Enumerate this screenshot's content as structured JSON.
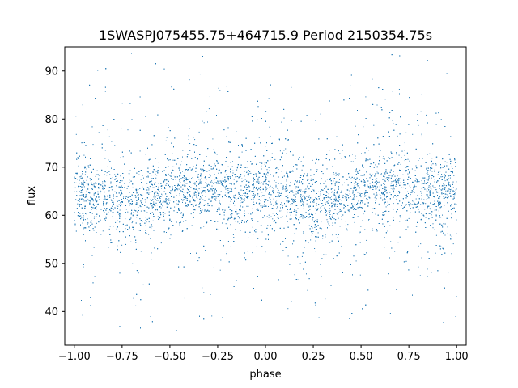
{
  "chart_data": {
    "type": "scatter",
    "title": "1SWASPJ075455.75+464715.9 Period 2150354.75s",
    "xlabel": "phase",
    "ylabel": "flux",
    "xlim": [
      -1.05,
      1.05
    ],
    "ylim": [
      33,
      95
    ],
    "xticks": [
      -1.0,
      -0.75,
      -0.5,
      -0.25,
      0.0,
      0.25,
      0.5,
      0.75,
      1.0
    ],
    "xtick_labels": [
      "−1.00",
      "−0.75",
      "−0.50",
      "−0.25",
      "0.00",
      "0.25",
      "0.50",
      "0.75",
      "1.00"
    ],
    "yticks": [
      40,
      50,
      60,
      70,
      80,
      90
    ],
    "ytick_labels": [
      "40",
      "50",
      "60",
      "70",
      "80",
      "90"
    ],
    "grid": false,
    "point_color": "#1f77b4",
    "phase_range": [
      -1.0,
      1.0
    ],
    "flux_median": 64.5,
    "flux_range": [
      36,
      94
    ],
    "series": [
      {
        "x": [
          -1.0,
          -0.95,
          -0.9,
          -0.85,
          -0.8,
          -0.75,
          -0.7,
          -0.65,
          -0.6,
          -0.55,
          -0.5,
          -0.45,
          -0.4,
          -0.35,
          -0.3,
          -0.25,
          -0.2,
          -0.15,
          -0.1,
          -0.05,
          0.0,
          0.05,
          0.1,
          0.15,
          0.2,
          0.25,
          0.3,
          0.35,
          0.4,
          0.45,
          0.5,
          0.55,
          0.6,
          0.65,
          0.7,
          0.75,
          0.8,
          0.85,
          0.9,
          0.95,
          1.0
        ],
        "y": [
          65,
          64.5,
          64,
          64,
          63.5,
          63,
          63,
          63,
          63.5,
          64,
          65,
          65.5,
          66,
          66,
          66,
          65.5,
          65.5,
          65,
          64.5,
          64.5,
          65,
          64.5,
          64,
          64,
          63.5,
          63,
          63,
          63,
          63.5,
          64,
          65,
          65.5,
          66,
          66,
          66,
          65.5,
          65.5,
          65,
          64.5,
          64.5,
          65
        ]
      }
    ]
  }
}
